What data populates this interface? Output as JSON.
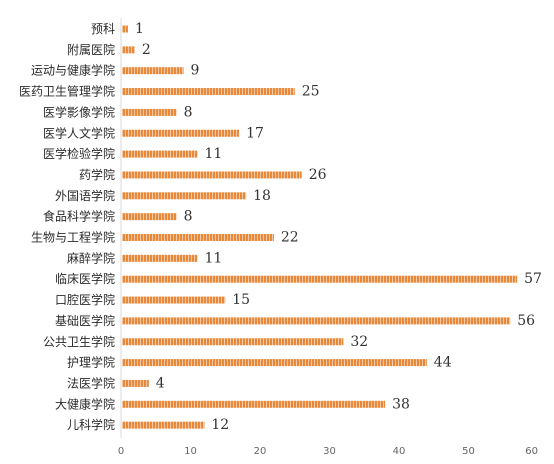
{
  "chart_data": {
    "type": "bar",
    "orientation": "horizontal",
    "categories": [
      "预科",
      "附属医院",
      "运动与健康学院",
      "医药卫生管理学院",
      "医学影像学院",
      "医学人文学院",
      "医学检验学院",
      "药学院",
      "外国语学院",
      "食品科学学院",
      "生物与工程学院",
      "麻醉学院",
      "临床医学院",
      "口腔医学院",
      "基础医学院",
      "公共卫生学院",
      "护理学院",
      "法医学院",
      "大健康学院",
      "儿科学院"
    ],
    "values": [
      1,
      2,
      9,
      25,
      8,
      17,
      11,
      26,
      18,
      8,
      22,
      11,
      57,
      15,
      56,
      32,
      44,
      4,
      38,
      12
    ],
    "xlim": [
      0,
      60
    ],
    "xticks": [
      0,
      10,
      20,
      30,
      40,
      50,
      60
    ],
    "bar_color": "#e8883a",
    "bar_stripe_color": "#ffffff",
    "grid": false,
    "legend": "none",
    "data_labels": true
  }
}
